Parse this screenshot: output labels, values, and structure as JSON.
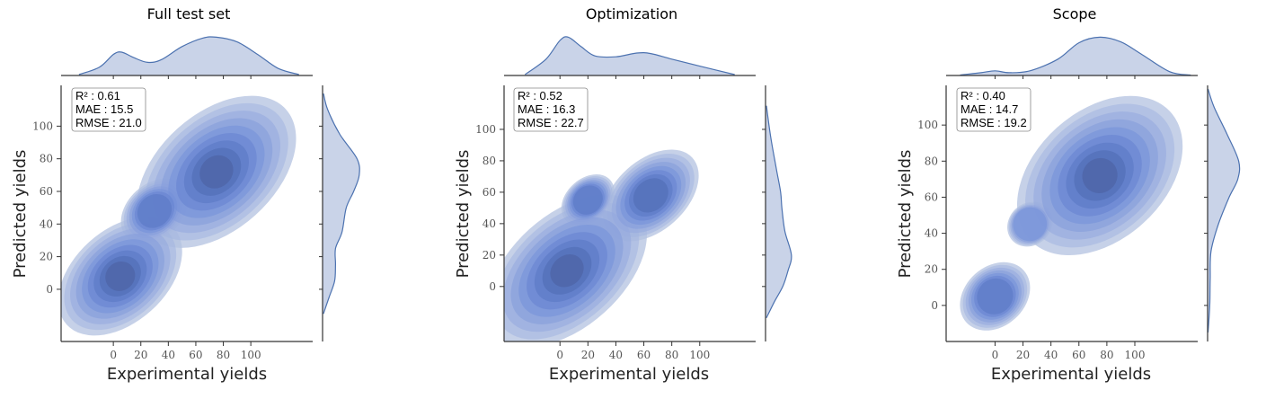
{
  "chart_data": [
    {
      "type": "kde-contour",
      "title": "Full test set",
      "xlabel": "Experimental yields",
      "ylabel": "Predicted yields",
      "x_ticks": [
        0,
        20,
        40,
        60,
        80,
        100
      ],
      "y_ticks": [
        0,
        20,
        40,
        60,
        80,
        100
      ],
      "xlim": [
        -38,
        145
      ],
      "ylim": [
        -32,
        125
      ],
      "stats": [
        "R² : 0.61",
        "MAE : 15.5",
        "RMSE : 21.0"
      ],
      "color": "#4c72b0",
      "peaks": [
        {
          "x": 75,
          "y": 72,
          "weight": 1.0
        },
        {
          "x": 5,
          "y": 8,
          "weight": 0.75
        },
        {
          "x": 30,
          "y": 48,
          "weight": 0.35
        }
      ],
      "x_marginal": [
        [
          -25,
          0.02
        ],
        [
          -10,
          0.18
        ],
        [
          0,
          0.45
        ],
        [
          6,
          0.5
        ],
        [
          15,
          0.38
        ],
        [
          25,
          0.28
        ],
        [
          35,
          0.34
        ],
        [
          50,
          0.62
        ],
        [
          65,
          0.8
        ],
        [
          75,
          0.82
        ],
        [
          90,
          0.72
        ],
        [
          105,
          0.45
        ],
        [
          120,
          0.15
        ],
        [
          135,
          0.02
        ]
      ],
      "y_marginal": [
        [
          -15,
          0.02
        ],
        [
          -5,
          0.15
        ],
        [
          5,
          0.28
        ],
        [
          15,
          0.3
        ],
        [
          25,
          0.3
        ],
        [
          35,
          0.45
        ],
        [
          50,
          0.55
        ],
        [
          60,
          0.72
        ],
        [
          70,
          0.85
        ],
        [
          80,
          0.8
        ],
        [
          95,
          0.4
        ],
        [
          110,
          0.12
        ],
        [
          120,
          0.02
        ]
      ]
    },
    {
      "type": "kde-contour",
      "title": "Optimization",
      "xlabel": "Experimental yields",
      "ylabel": "Predicted yields",
      "x_ticks": [
        0,
        20,
        40,
        60,
        80,
        100
      ],
      "y_ticks": [
        0,
        20,
        40,
        60,
        80,
        100
      ],
      "xlim": [
        -40,
        140
      ],
      "ylim": [
        -35,
        128
      ],
      "stats": [
        "R² : 0.52",
        "MAE : 16.3",
        "RMSE : 22.7"
      ],
      "color": "#4c72b0",
      "peaks": [
        {
          "x": 5,
          "y": 10,
          "weight": 1.0
        },
        {
          "x": 65,
          "y": 58,
          "weight": 0.55
        },
        {
          "x": 20,
          "y": 55,
          "weight": 0.25
        }
      ],
      "x_marginal": [
        [
          -25,
          0.02
        ],
        [
          -10,
          0.35
        ],
        [
          0,
          0.75
        ],
        [
          6,
          0.82
        ],
        [
          15,
          0.62
        ],
        [
          25,
          0.42
        ],
        [
          40,
          0.4
        ],
        [
          55,
          0.48
        ],
        [
          65,
          0.47
        ],
        [
          80,
          0.35
        ],
        [
          100,
          0.2
        ],
        [
          125,
          0.02
        ]
      ],
      "y_marginal": [
        [
          -20,
          0.02
        ],
        [
          -10,
          0.2
        ],
        [
          0,
          0.4
        ],
        [
          10,
          0.52
        ],
        [
          20,
          0.6
        ],
        [
          35,
          0.45
        ],
        [
          50,
          0.38
        ],
        [
          60,
          0.35
        ],
        [
          75,
          0.25
        ],
        [
          95,
          0.12
        ],
        [
          115,
          0.02
        ]
      ]
    },
    {
      "type": "kde-contour",
      "title": "Scope",
      "xlabel": "Experimental yields",
      "ylabel": "Predicted yields",
      "x_ticks": [
        0,
        20,
        40,
        60,
        80,
        100
      ],
      "y_ticks": [
        0,
        20,
        40,
        60,
        80,
        100
      ],
      "xlim": [
        -35,
        145
      ],
      "ylim": [
        -20,
        122
      ],
      "stats": [
        "R² : 0.40",
        "MAE : 14.7",
        "RMSE : 19.2"
      ],
      "color": "#4c72b0",
      "peaks": [
        {
          "x": 75,
          "y": 72,
          "weight": 1.0
        },
        {
          "x": 0,
          "y": 5,
          "weight": 0.35
        },
        {
          "x": 25,
          "y": 45,
          "weight": 0.18
        }
      ],
      "x_marginal": [
        [
          -25,
          0.01
        ],
        [
          -10,
          0.06
        ],
        [
          0,
          0.1
        ],
        [
          10,
          0.06
        ],
        [
          25,
          0.1
        ],
        [
          45,
          0.35
        ],
        [
          60,
          0.7
        ],
        [
          75,
          0.82
        ],
        [
          90,
          0.72
        ],
        [
          105,
          0.45
        ],
        [
          125,
          0.08
        ],
        [
          140,
          0.01
        ]
      ],
      "y_marginal": [
        [
          -15,
          0.01
        ],
        [
          0,
          0.05
        ],
        [
          15,
          0.06
        ],
        [
          30,
          0.08
        ],
        [
          45,
          0.25
        ],
        [
          60,
          0.5
        ],
        [
          70,
          0.7
        ],
        [
          80,
          0.72
        ],
        [
          95,
          0.45
        ],
        [
          110,
          0.15
        ],
        [
          120,
          0.01
        ]
      ]
    }
  ]
}
